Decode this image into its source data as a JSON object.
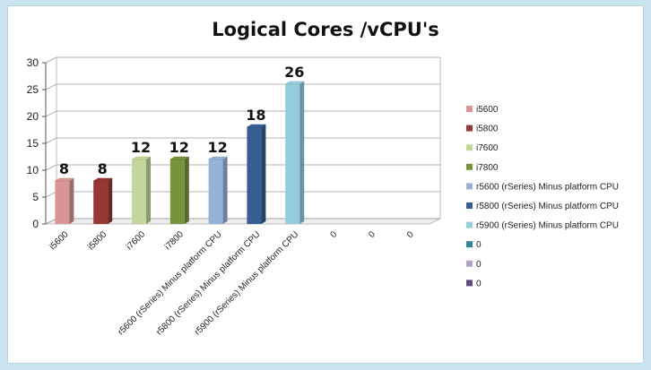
{
  "chart_data": {
    "type": "bar",
    "title": "Logical Cores /vCPU's",
    "xlabel": "",
    "ylabel": "",
    "ylim": [
      0,
      30
    ],
    "yticks": [
      0,
      5,
      10,
      15,
      20,
      25,
      30
    ],
    "grid": true,
    "legend_position": "right",
    "categories": [
      "i5600",
      "i5800",
      "i7600",
      "i7800",
      "r5600 (rSeries) Minus platform CPU",
      "r5800 (rSeries) Minus platform CPU",
      "r5900 (rSeries) Minus platform CPU",
      "0",
      "0",
      "0"
    ],
    "values": [
      8,
      8,
      12,
      12,
      12,
      18,
      26,
      null,
      null,
      null
    ],
    "data_labels": [
      "8",
      "8",
      "12",
      "12",
      "12",
      "18",
      "26",
      "",
      "",
      ""
    ],
    "colors": [
      "#d99594",
      "#953735",
      "#c3d69b",
      "#77933c",
      "#95b3d7",
      "#365f91",
      "#93cddd",
      "#31849b",
      "#b3a2c7",
      "#604a7b"
    ],
    "legend": [
      "i5600",
      "i5800",
      "i7600",
      "i7800",
      "r5600 (rSeries) Minus platform CPU",
      "r5800 (rSeries) Minus platform CPU",
      "r5900 (rSeries) Minus platform CPU",
      "0",
      "0",
      "0"
    ]
  }
}
